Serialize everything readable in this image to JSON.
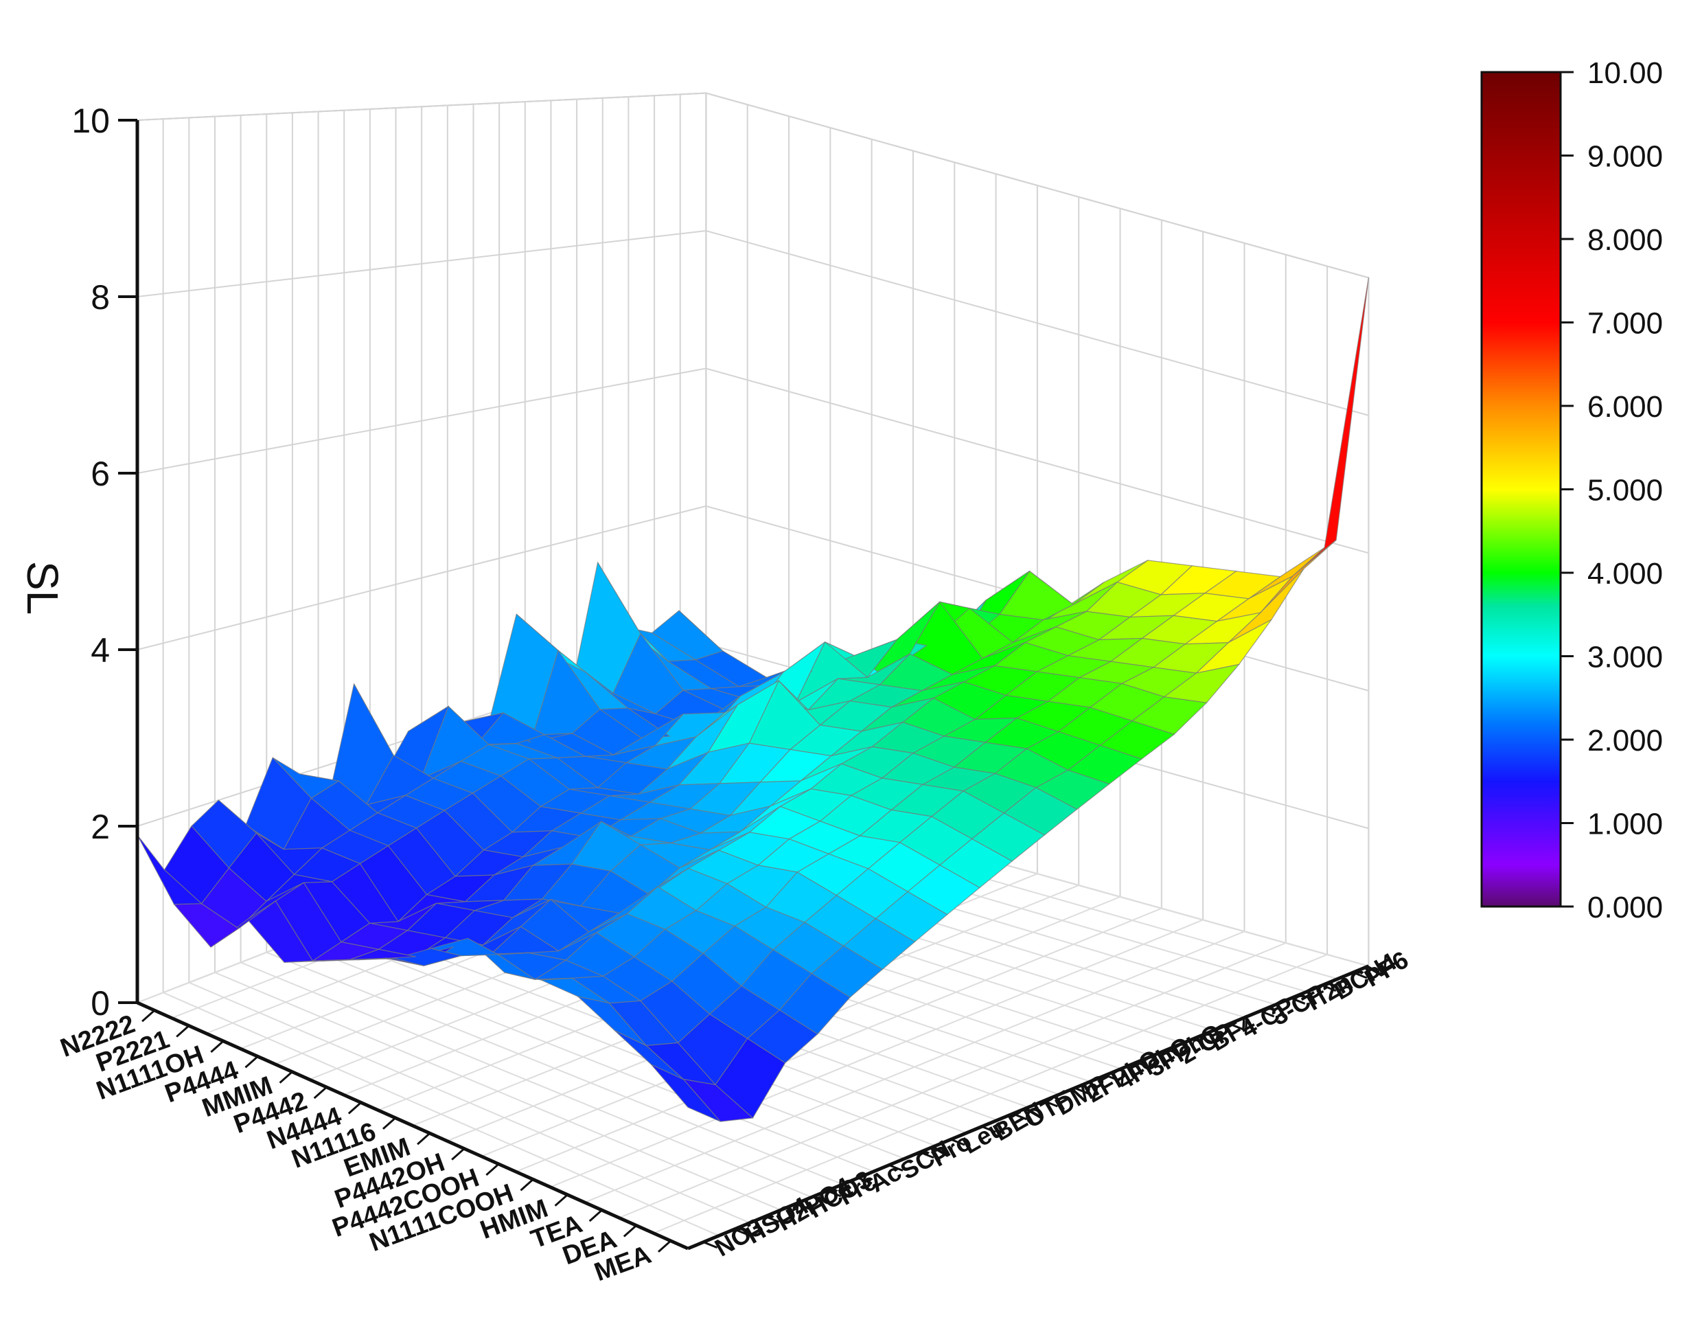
{
  "chart_data": {
    "type": "surface3d",
    "zlabel": "SL",
    "zlim": [
      0,
      10
    ],
    "z_ticks": [
      "0",
      "2",
      "4",
      "6",
      "8",
      "10"
    ],
    "x_axis_categories": [
      "N2222",
      "P2221",
      "N1111OH",
      "P4444",
      "MMIM",
      "P4442",
      "N4444",
      "N11116",
      "EMIM",
      "P4442OH",
      "P4442COOH",
      "N1111COOH",
      "HMIM",
      "TEA",
      "DEA",
      "MEA"
    ],
    "y_axis_categories": [
      "NO3",
      "HSO4",
      "H2PO4",
      "HCO3",
      "Frc",
      "Ac",
      "SCN",
      "Pro",
      "Leu",
      "BEN",
      "OTF",
      "DMP",
      "2FPhO",
      "4FPhO",
      "3FPhO",
      "2-CP",
      "BF4",
      "4-CP",
      "3-CP",
      "Tf2n",
      "BCN4",
      "PF6"
    ],
    "colorbar": {
      "min": 0,
      "max": 10,
      "ticks": [
        "0.000",
        "1.000",
        "2.000",
        "3.000",
        "4.000",
        "5.000",
        "6.000",
        "7.000",
        "8.000",
        "9.000",
        "10.00"
      ],
      "colors": [
        "#5a0a6e",
        "#8b00ff",
        "#0000ff",
        "#00ffff",
        "#00ff00",
        "#ffff00",
        "#ff8800",
        "#ff0000",
        "#7a0000"
      ]
    },
    "grid": true,
    "peaks": [
      {
        "x": "N2222",
        "y": "PF6",
        "value": 10.0
      },
      {
        "x": "N2222",
        "y": "BCN4",
        "value": 6.3
      }
    ],
    "row_profiles_note_values": [
      [
        1.9,
        1.4,
        1.8,
        2.0,
        1.6,
        2.3,
        2.0,
        1.5,
        2.9,
        1.6,
        2.1,
        1.6,
        2.0,
        1.9,
        3.2,
        2.6,
        1.9,
        3.6,
        2.6,
        2.4,
        2.6,
        1.8
      ],
      [
        1.3,
        1.2,
        1.5,
        1.8,
        1.5,
        2.0,
        2.1,
        1.7,
        2.2,
        1.8,
        2.6,
        2.0,
        2.3,
        1.8,
        2.9,
        2.5,
        2.1,
        2.8,
        2.3,
        2.2,
        2.2,
        1.7
      ],
      [
        1.0,
        1.1,
        1.3,
        1.5,
        1.7,
        1.8,
        1.9,
        2.0,
        2.1,
        2.2,
        2.3,
        2.2,
        2.2,
        2.1,
        2.3,
        2.2,
        2.0,
        2.2,
        2.1,
        2.0,
        2.0,
        1.6
      ],
      [
        1.5,
        1.6,
        1.7,
        1.6,
        1.7,
        1.8,
        1.9,
        2.0,
        2.1,
        2.2,
        2.3,
        2.2,
        2.1,
        2.0,
        2.1,
        2.0,
        2.0,
        2.1,
        2.1,
        2.2,
        2.4,
        2.0
      ],
      [
        1.2,
        1.1,
        1.2,
        1.3,
        1.2,
        1.4,
        1.5,
        1.7,
        1.8,
        2.0,
        2.1,
        2.0,
        2.2,
        2.3,
        2.6,
        2.3,
        2.6,
        2.4,
        2.3,
        2.3,
        2.5,
        2.2
      ],
      [
        1.4,
        1.3,
        1.3,
        1.4,
        1.6,
        1.5,
        1.7,
        1.8,
        2.0,
        2.1,
        2.2,
        2.1,
        2.3,
        2.6,
        2.8,
        2.7,
        3.1,
        3.0,
        2.7,
        2.6,
        2.9,
        2.4
      ],
      [
        1.6,
        1.5,
        1.4,
        1.5,
        1.7,
        1.7,
        2.0,
        2.1,
        2.1,
        2.2,
        2.3,
        2.4,
        2.7,
        3.2,
        3.3,
        3.0,
        3.7,
        3.4,
        3.0,
        3.0,
        3.2,
        2.8
      ],
      [
        1.8,
        1.6,
        1.7,
        1.6,
        1.8,
        1.9,
        2.2,
        2.6,
        2.3,
        2.4,
        2.4,
        2.6,
        3.0,
        3.7,
        3.2,
        3.5,
        3.4,
        3.8,
        3.6,
        3.4,
        4.0,
        3.3
      ],
      [
        2.1,
        1.9,
        1.8,
        2.0,
        2.2,
        2.0,
        2.3,
        2.5,
        2.4,
        2.4,
        2.5,
        2.8,
        3.1,
        3.3,
        3.5,
        3.6,
        3.9,
        4.5,
        4.3,
        4.1,
        4.6,
        3.9
      ],
      [
        2.4,
        2.1,
        2.0,
        1.9,
        2.0,
        2.1,
        2.2,
        2.4,
        2.5,
        2.6,
        2.8,
        3.0,
        3.2,
        3.4,
        3.6,
        3.7,
        3.8,
        3.9,
        4.0,
        4.2,
        4.3,
        4.5
      ],
      [
        2.2,
        2.0,
        2.1,
        2.3,
        2.4,
        2.6,
        2.7,
        2.8,
        2.9,
        3.1,
        3.2,
        3.4,
        3.5,
        3.7,
        3.9,
        4.0,
        4.1,
        4.3,
        4.4,
        4.5,
        4.8,
        5.0
      ],
      [
        2.3,
        2.2,
        2.1,
        2.2,
        2.4,
        2.5,
        2.7,
        2.8,
        3.0,
        3.1,
        3.3,
        3.4,
        3.6,
        3.7,
        3.8,
        4.0,
        4.2,
        4.3,
        4.4,
        4.6,
        4.8,
        5.1
      ],
      [
        2.3,
        2.1,
        2.0,
        2.1,
        2.3,
        2.5,
        2.6,
        2.9,
        3.0,
        3.1,
        3.3,
        3.5,
        3.6,
        3.8,
        4.0,
        4.1,
        4.3,
        4.4,
        4.6,
        4.8,
        5.0,
        5.2
      ],
      [
        2.1,
        1.8,
        1.7,
        1.9,
        2.1,
        2.4,
        2.6,
        2.8,
        3.0,
        3.2,
        3.4,
        3.6,
        3.7,
        3.9,
        4.0,
        4.2,
        4.4,
        4.5,
        4.7,
        4.9,
        5.1,
        5.3
      ],
      [
        1.9,
        1.6,
        1.4,
        1.8,
        2.0,
        2.3,
        2.5,
        2.7,
        2.9,
        3.1,
        3.3,
        3.5,
        3.7,
        3.8,
        4.0,
        4.2,
        4.4,
        4.6,
        4.9,
        5.2,
        5.6,
        5.9
      ],
      [
        1.6,
        1.3,
        1.2,
        1.7,
        1.9,
        2.2,
        2.4,
        2.6,
        2.8,
        3.0,
        3.2,
        3.4,
        3.6,
        3.8,
        4.0,
        4.2,
        4.5,
        4.9,
        5.4,
        6.0,
        6.3,
        10.0
      ]
    ]
  }
}
